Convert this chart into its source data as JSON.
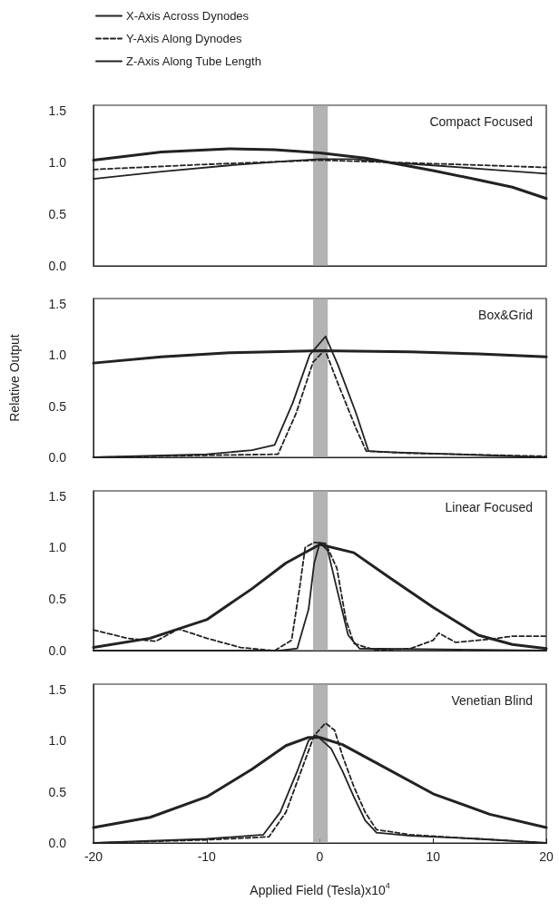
{
  "chart_data": [
    {
      "type": "line",
      "title": "Compact Focused",
      "legend": "top left",
      "xlim": [
        -20,
        20
      ],
      "xticks": [
        -20,
        -10,
        0,
        10,
        20
      ],
      "ylim": [
        0,
        1.55
      ],
      "yticks": [
        {
          "value": 0,
          "label": "0.0"
        },
        {
          "value": 0.5,
          "label": "0.5"
        },
        {
          "value": 1,
          "label": "1.0"
        },
        {
          "value": 1.5,
          "label": "1.5"
        }
      ],
      "tick_labels": "y",
      "marker": "none",
      "grid": false,
      "bands": [
        {
          "axis": "x",
          "from": -0.6,
          "to": 0.7,
          "color": "#a0a0a0"
        }
      ],
      "series": [
        {
          "name": "X-Axis Across Dynodes",
          "color": "#222222",
          "line_style": "solid",
          "x": [
            -20,
            -14,
            -8,
            -3,
            0,
            3,
            6,
            10,
            15,
            20
          ],
          "values": [
            0.84,
            0.91,
            0.97,
            1.01,
            1.03,
            1.03,
            1.0,
            0.97,
            0.93,
            0.89
          ]
        },
        {
          "name": "Y-Axis Along Dynodes",
          "color": "#222222",
          "line_style": "dashed",
          "x": [
            -20,
            -10,
            0,
            6,
            12,
            20
          ],
          "values": [
            0.93,
            0.98,
            1.02,
            1.0,
            0.98,
            0.95
          ]
        },
        {
          "name": "Z-Axis Along Tube Length",
          "color": "#222222",
          "line_style": "solid",
          "x": [
            -20,
            -14,
            -8,
            -4,
            0,
            4,
            6,
            10,
            14,
            17,
            20
          ],
          "values": [
            1.02,
            1.1,
            1.13,
            1.12,
            1.09,
            1.04,
            1.0,
            0.92,
            0.83,
            0.76,
            0.65
          ]
        }
      ]
    },
    {
      "type": "line",
      "title": "Box&Grid",
      "ylabel": "Relative Output",
      "xlim": [
        -20,
        20
      ],
      "xticks": [
        -20,
        -10,
        0,
        10,
        20
      ],
      "ylim": [
        0,
        1.55
      ],
      "yticks": [
        {
          "value": 0,
          "label": "0.0"
        },
        {
          "value": 0.5,
          "label": "0.5"
        },
        {
          "value": 1,
          "label": "1.0"
        },
        {
          "value": 1.5,
          "label": "1.5"
        }
      ],
      "tick_labels": "y",
      "marker": "none",
      "grid": false,
      "bands": [
        {
          "axis": "x",
          "from": -0.6,
          "to": 0.7,
          "color": "#a0a0a0"
        }
      ],
      "series": [
        {
          "color": "#222222",
          "line_style": "solid",
          "x": [
            -20,
            -10,
            -6,
            -4,
            -2.4,
            -0.9,
            0.5,
            1.6,
            3.2,
            4.3,
            6.3,
            20
          ],
          "values": [
            0.0,
            0.03,
            0.07,
            0.12,
            0.53,
            1.0,
            1.18,
            0.9,
            0.43,
            0.06,
            0.05,
            0.0
          ]
        },
        {
          "color": "#222222",
          "line_style": "dashed",
          "x": [
            -20,
            -10,
            -3.7,
            -2.1,
            -0.6,
            0.45,
            1.6,
            3.2,
            4.1,
            8,
            20
          ],
          "values": [
            0.0,
            0.02,
            0.03,
            0.43,
            0.93,
            1.05,
            0.72,
            0.28,
            0.06,
            0.04,
            0.01
          ]
        },
        {
          "color": "#222222",
          "line_style": "solid",
          "x": [
            -20,
            -14,
            -8,
            0,
            8,
            14,
            20
          ],
          "values": [
            0.92,
            0.98,
            1.02,
            1.04,
            1.03,
            1.01,
            0.98
          ]
        }
      ]
    },
    {
      "type": "line",
      "title": "Linear Focused",
      "xlim": [
        -20,
        20
      ],
      "xticks": [
        -20,
        -10,
        0,
        10,
        20
      ],
      "ylim": [
        0,
        1.55
      ],
      "yticks": [
        {
          "value": 0,
          "label": "0.0"
        },
        {
          "value": 0.5,
          "label": "0.5"
        },
        {
          "value": 1,
          "label": "1.0"
        },
        {
          "value": 1.5,
          "label": "1.5"
        }
      ],
      "tick_labels": "y",
      "marker": "none",
      "grid": false,
      "bands": [
        {
          "axis": "x",
          "from": -0.6,
          "to": 0.7,
          "color": "#a0a0a0"
        }
      ],
      "series": [
        {
          "color": "#222222",
          "line_style": "solid",
          "x": [
            -20,
            -3.5,
            -2,
            -1,
            -0.5,
            0,
            0.7,
            1.5,
            2.5,
            3.5,
            20
          ],
          "values": [
            0.0,
            0.0,
            0.02,
            0.4,
            0.85,
            1.05,
            0.97,
            0.6,
            0.15,
            0.02,
            0.0
          ]
        },
        {
          "color": "#222222",
          "line_style": "dashed",
          "x": [
            -20,
            -17,
            -14.5,
            -12.5,
            -10,
            -7,
            -4,
            -2.5,
            -1.8,
            -1.3,
            -0.5,
            0.5,
            1.5,
            2.3,
            3,
            5,
            8,
            10,
            10.5,
            12,
            15,
            17,
            20
          ],
          "values": [
            0.2,
            0.12,
            0.09,
            0.21,
            0.12,
            0.03,
            0.0,
            0.1,
            0.6,
            1.0,
            1.05,
            1.04,
            0.8,
            0.3,
            0.07,
            0.0,
            0.02,
            0.1,
            0.17,
            0.08,
            0.11,
            0.14,
            0.14
          ]
        },
        {
          "color": "#222222",
          "line_style": "solid",
          "x": [
            -20,
            -15,
            -10,
            -6,
            -3,
            0,
            3,
            6,
            10,
            14,
            17,
            20
          ],
          "values": [
            0.03,
            0.12,
            0.3,
            0.6,
            0.85,
            1.03,
            0.95,
            0.72,
            0.42,
            0.15,
            0.06,
            0.02
          ]
        }
      ]
    },
    {
      "type": "line",
      "title": "Venetian Blind",
      "xlabel": "Applied Field (Tesla)x10$^{4}$",
      "xlim": [
        -20,
        20
      ],
      "xticks": [
        -20,
        -10,
        0,
        10,
        20
      ],
      "ylim": [
        0,
        1.55
      ],
      "yticks": [
        {
          "value": 0,
          "label": "0.0"
        },
        {
          "value": 0.5,
          "label": "0.5"
        },
        {
          "value": 1,
          "label": "1.0"
        },
        {
          "value": 1.5,
          "label": "1.5"
        }
      ],
      "marker": "none",
      "grid": false,
      "bands": [
        {
          "axis": "x",
          "from": -0.6,
          "to": 0.7,
          "color": "#a0a0a0"
        }
      ],
      "series": [
        {
          "color": "#222222",
          "line_style": "solid",
          "x": [
            -20,
            -10,
            -5,
            -3.5,
            -2,
            -1,
            -0.3,
            1,
            2,
            3,
            4,
            5,
            8,
            14,
            20
          ],
          "values": [
            0.0,
            0.04,
            0.08,
            0.3,
            0.7,
            1.0,
            1.05,
            0.92,
            0.7,
            0.45,
            0.22,
            0.1,
            0.07,
            0.04,
            0.0
          ]
        },
        {
          "color": "#222222",
          "line_style": "dashed",
          "x": [
            -20,
            -10,
            -4.5,
            -3,
            -1.5,
            -0.5,
            0.5,
            1.3,
            2,
            3,
            4,
            5,
            8,
            14,
            20
          ],
          "values": [
            0.0,
            0.03,
            0.06,
            0.3,
            0.75,
            1.05,
            1.17,
            1.1,
            0.85,
            0.55,
            0.3,
            0.13,
            0.08,
            0.04,
            0.0
          ]
        },
        {
          "color": "#222222",
          "line_style": "solid",
          "x": [
            -20,
            -15,
            -10,
            -6,
            -3,
            -1,
            0,
            2,
            5,
            10,
            15,
            20
          ],
          "values": [
            0.15,
            0.25,
            0.45,
            0.72,
            0.95,
            1.03,
            1.03,
            0.96,
            0.78,
            0.48,
            0.28,
            0.15
          ]
        }
      ]
    }
  ]
}
